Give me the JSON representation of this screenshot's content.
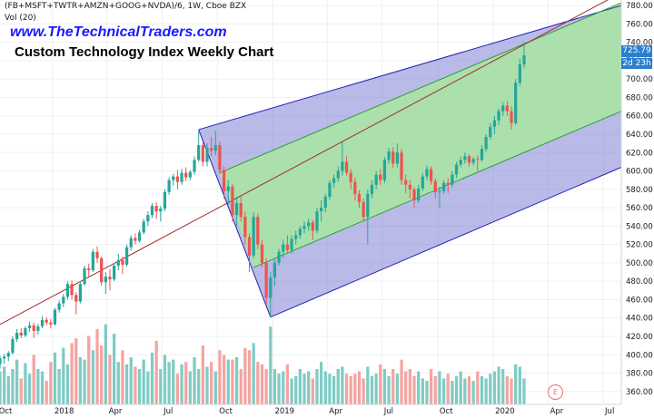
{
  "header": {
    "symbol": "(FB+MSFT+TWTR+AMZN+GOOG+NVDA)/6, 1W, Cboe BZX",
    "volume_label": "Vol (20)",
    "website": "www.TheTechnicalTraders.com",
    "title": "Custom Technology Index Weekly Chart"
  },
  "price_tag": {
    "value": "725.79",
    "countdown": "2d 23h"
  },
  "event_marker": "E",
  "colors": {
    "up": "#26a69a",
    "down": "#ef5350",
    "vol_up": "#80cbc4",
    "vol_down": "#f4a4a1",
    "outer_channel": "#6666cc",
    "inner_channel": "#a8e6a1",
    "median": "#a52a2a",
    "price_tag": "#2a7fce"
  },
  "chart_data": {
    "type": "candlestick",
    "price_axis": {
      "ticks": [
        "360.00",
        "380.00",
        "400.00",
        "420.00",
        "440.00",
        "460.00",
        "480.00",
        "500.00",
        "520.00",
        "540.00",
        "560.00",
        "580.00",
        "600.00",
        "620.00",
        "640.00",
        "660.00",
        "680.00",
        "700.00",
        "720.00",
        "740.00",
        "760.00",
        "780.00"
      ],
      "ylim": [
        346,
        786
      ]
    },
    "time_axis": {
      "ticks": [
        "Oct",
        "2018",
        "Apr",
        "Jul",
        "Oct",
        "2019",
        "Apr",
        "Jul",
        "Oct",
        "2020",
        "Apr",
        "Jul"
      ],
      "start": "2017-10-06",
      "end": "2020-07-31"
    },
    "last_price": 725.79,
    "candles": [
      {
        "date": "2017-10-06",
        "o": 390,
        "h": 399,
        "l": 385,
        "c": 396
      },
      {
        "date": "2017-10-13",
        "o": 396,
        "h": 401,
        "l": 390,
        "c": 398
      },
      {
        "date": "2017-10-20",
        "o": 398,
        "h": 404,
        "l": 393,
        "c": 402
      },
      {
        "date": "2017-10-27",
        "o": 402,
        "h": 420,
        "l": 400,
        "c": 417
      },
      {
        "date": "2017-11-03",
        "o": 417,
        "h": 428,
        "l": 414,
        "c": 424
      },
      {
        "date": "2017-11-10",
        "o": 424,
        "h": 429,
        "l": 418,
        "c": 421
      },
      {
        "date": "2017-11-17",
        "o": 421,
        "h": 431,
        "l": 419,
        "c": 429
      },
      {
        "date": "2017-11-24",
        "o": 429,
        "h": 436,
        "l": 425,
        "c": 432
      },
      {
        "date": "2017-12-01",
        "o": 432,
        "h": 435,
        "l": 418,
        "c": 426
      },
      {
        "date": "2017-12-08",
        "o": 426,
        "h": 434,
        "l": 422,
        "c": 431
      },
      {
        "date": "2017-12-15",
        "o": 431,
        "h": 442,
        "l": 429,
        "c": 438
      },
      {
        "date": "2017-12-22",
        "o": 438,
        "h": 441,
        "l": 432,
        "c": 435
      },
      {
        "date": "2017-12-29",
        "o": 435,
        "h": 439,
        "l": 429,
        "c": 433
      },
      {
        "date": "2018-01-05",
        "o": 433,
        "h": 451,
        "l": 432,
        "c": 449
      },
      {
        "date": "2018-01-12",
        "o": 449,
        "h": 459,
        "l": 446,
        "c": 456
      },
      {
        "date": "2018-01-19",
        "o": 456,
        "h": 466,
        "l": 452,
        "c": 463
      },
      {
        "date": "2018-01-26",
        "o": 463,
        "h": 480,
        "l": 460,
        "c": 477
      },
      {
        "date": "2018-02-02",
        "o": 477,
        "h": 481,
        "l": 460,
        "c": 465
      },
      {
        "date": "2018-02-09",
        "o": 465,
        "h": 468,
        "l": 444,
        "c": 458
      },
      {
        "date": "2018-02-16",
        "o": 458,
        "h": 480,
        "l": 456,
        "c": 477
      },
      {
        "date": "2018-02-23",
        "o": 477,
        "h": 497,
        "l": 475,
        "c": 494
      },
      {
        "date": "2018-03-02",
        "o": 494,
        "h": 499,
        "l": 485,
        "c": 492
      },
      {
        "date": "2018-03-09",
        "o": 492,
        "h": 515,
        "l": 490,
        "c": 512
      },
      {
        "date": "2018-03-16",
        "o": 512,
        "h": 518,
        "l": 500,
        "c": 505
      },
      {
        "date": "2018-03-23",
        "o": 505,
        "h": 507,
        "l": 475,
        "c": 479
      },
      {
        "date": "2018-03-30",
        "o": 479,
        "h": 490,
        "l": 466,
        "c": 485
      },
      {
        "date": "2018-04-06",
        "o": 485,
        "h": 493,
        "l": 470,
        "c": 482
      },
      {
        "date": "2018-04-13",
        "o": 482,
        "h": 500,
        "l": 480,
        "c": 497
      },
      {
        "date": "2018-04-20",
        "o": 497,
        "h": 510,
        "l": 492,
        "c": 503
      },
      {
        "date": "2018-04-27",
        "o": 503,
        "h": 507,
        "l": 488,
        "c": 498
      },
      {
        "date": "2018-05-04",
        "o": 498,
        "h": 520,
        "l": 496,
        "c": 517
      },
      {
        "date": "2018-05-11",
        "o": 517,
        "h": 530,
        "l": 513,
        "c": 527
      },
      {
        "date": "2018-05-18",
        "o": 527,
        "h": 532,
        "l": 520,
        "c": 524
      },
      {
        "date": "2018-05-25",
        "o": 524,
        "h": 536,
        "l": 522,
        "c": 533
      },
      {
        "date": "2018-06-01",
        "o": 533,
        "h": 548,
        "l": 531,
        "c": 545
      },
      {
        "date": "2018-06-08",
        "o": 545,
        "h": 556,
        "l": 540,
        "c": 552
      },
      {
        "date": "2018-06-15",
        "o": 552,
        "h": 565,
        "l": 549,
        "c": 562
      },
      {
        "date": "2018-06-22",
        "o": 562,
        "h": 566,
        "l": 548,
        "c": 556
      },
      {
        "date": "2018-06-29",
        "o": 556,
        "h": 562,
        "l": 545,
        "c": 559
      },
      {
        "date": "2018-07-06",
        "o": 559,
        "h": 580,
        "l": 556,
        "c": 577
      },
      {
        "date": "2018-07-13",
        "o": 577,
        "h": 593,
        "l": 574,
        "c": 590
      },
      {
        "date": "2018-07-20",
        "o": 590,
        "h": 597,
        "l": 584,
        "c": 594
      },
      {
        "date": "2018-07-27",
        "o": 594,
        "h": 601,
        "l": 580,
        "c": 588
      },
      {
        "date": "2018-08-03",
        "o": 588,
        "h": 602,
        "l": 585,
        "c": 598
      },
      {
        "date": "2018-08-10",
        "o": 598,
        "h": 604,
        "l": 589,
        "c": 593
      },
      {
        "date": "2018-08-17",
        "o": 593,
        "h": 601,
        "l": 590,
        "c": 599
      },
      {
        "date": "2018-08-24",
        "o": 599,
        "h": 616,
        "l": 596,
        "c": 612
      },
      {
        "date": "2018-08-31",
        "o": 612,
        "h": 643,
        "l": 610,
        "c": 628
      },
      {
        "date": "2018-09-07",
        "o": 628,
        "h": 632,
        "l": 605,
        "c": 610
      },
      {
        "date": "2018-09-14",
        "o": 610,
        "h": 630,
        "l": 605,
        "c": 625
      },
      {
        "date": "2018-09-21",
        "o": 625,
        "h": 637,
        "l": 616,
        "c": 622
      },
      {
        "date": "2018-09-28",
        "o": 622,
        "h": 644,
        "l": 617,
        "c": 628
      },
      {
        "date": "2018-10-05",
        "o": 628,
        "h": 632,
        "l": 597,
        "c": 601
      },
      {
        "date": "2018-10-12",
        "o": 601,
        "h": 605,
        "l": 570,
        "c": 578
      },
      {
        "date": "2018-10-19",
        "o": 578,
        "h": 590,
        "l": 563,
        "c": 583
      },
      {
        "date": "2018-10-26",
        "o": 583,
        "h": 586,
        "l": 545,
        "c": 552
      },
      {
        "date": "2018-11-02",
        "o": 552,
        "h": 572,
        "l": 540,
        "c": 565
      },
      {
        "date": "2018-11-09",
        "o": 565,
        "h": 572,
        "l": 545,
        "c": 550
      },
      {
        "date": "2018-11-16",
        "o": 550,
        "h": 556,
        "l": 520,
        "c": 528
      },
      {
        "date": "2018-11-23",
        "o": 528,
        "h": 532,
        "l": 490,
        "c": 508
      },
      {
        "date": "2018-11-30",
        "o": 508,
        "h": 555,
        "l": 505,
        "c": 550
      },
      {
        "date": "2018-12-07",
        "o": 550,
        "h": 554,
        "l": 515,
        "c": 520
      },
      {
        "date": "2018-12-14",
        "o": 520,
        "h": 525,
        "l": 495,
        "c": 500
      },
      {
        "date": "2018-12-21",
        "o": 500,
        "h": 505,
        "l": 455,
        "c": 462
      },
      {
        "date": "2018-12-28",
        "o": 462,
        "h": 490,
        "l": 441,
        "c": 484
      },
      {
        "date": "2019-01-04",
        "o": 484,
        "h": 505,
        "l": 475,
        "c": 500
      },
      {
        "date": "2019-01-11",
        "o": 500,
        "h": 515,
        "l": 497,
        "c": 512
      },
      {
        "date": "2019-01-18",
        "o": 512,
        "h": 525,
        "l": 505,
        "c": 520
      },
      {
        "date": "2019-01-25",
        "o": 520,
        "h": 530,
        "l": 510,
        "c": 514
      },
      {
        "date": "2019-02-01",
        "o": 514,
        "h": 530,
        "l": 510,
        "c": 526
      },
      {
        "date": "2019-02-08",
        "o": 526,
        "h": 535,
        "l": 520,
        "c": 530
      },
      {
        "date": "2019-02-15",
        "o": 530,
        "h": 540,
        "l": 526,
        "c": 537
      },
      {
        "date": "2019-02-22",
        "o": 537,
        "h": 545,
        "l": 532,
        "c": 540
      },
      {
        "date": "2019-03-01",
        "o": 540,
        "h": 548,
        "l": 535,
        "c": 544
      },
      {
        "date": "2019-03-08",
        "o": 544,
        "h": 547,
        "l": 525,
        "c": 535
      },
      {
        "date": "2019-03-15",
        "o": 535,
        "h": 560,
        "l": 532,
        "c": 556
      },
      {
        "date": "2019-03-22",
        "o": 556,
        "h": 568,
        "l": 545,
        "c": 560
      },
      {
        "date": "2019-03-29",
        "o": 560,
        "h": 575,
        "l": 555,
        "c": 572
      },
      {
        "date": "2019-04-05",
        "o": 572,
        "h": 590,
        "l": 569,
        "c": 587
      },
      {
        "date": "2019-04-12",
        "o": 587,
        "h": 596,
        "l": 582,
        "c": 592
      },
      {
        "date": "2019-04-19",
        "o": 592,
        "h": 605,
        "l": 588,
        "c": 600
      },
      {
        "date": "2019-04-26",
        "o": 600,
        "h": 632,
        "l": 595,
        "c": 610
      },
      {
        "date": "2019-05-03",
        "o": 610,
        "h": 616,
        "l": 595,
        "c": 598
      },
      {
        "date": "2019-05-10",
        "o": 598,
        "h": 602,
        "l": 580,
        "c": 588
      },
      {
        "date": "2019-05-17",
        "o": 588,
        "h": 593,
        "l": 568,
        "c": 575
      },
      {
        "date": "2019-05-24",
        "o": 575,
        "h": 579,
        "l": 560,
        "c": 566
      },
      {
        "date": "2019-05-31",
        "o": 566,
        "h": 570,
        "l": 545,
        "c": 550
      },
      {
        "date": "2019-06-07",
        "o": 550,
        "h": 580,
        "l": 520,
        "c": 575
      },
      {
        "date": "2019-06-14",
        "o": 575,
        "h": 590,
        "l": 570,
        "c": 585
      },
      {
        "date": "2019-06-21",
        "o": 585,
        "h": 600,
        "l": 580,
        "c": 596
      },
      {
        "date": "2019-06-28",
        "o": 596,
        "h": 602,
        "l": 585,
        "c": 590
      },
      {
        "date": "2019-07-05",
        "o": 590,
        "h": 615,
        "l": 587,
        "c": 612
      },
      {
        "date": "2019-07-12",
        "o": 612,
        "h": 625,
        "l": 608,
        "c": 621
      },
      {
        "date": "2019-07-19",
        "o": 621,
        "h": 626,
        "l": 603,
        "c": 608
      },
      {
        "date": "2019-07-26",
        "o": 608,
        "h": 630,
        "l": 604,
        "c": 620
      },
      {
        "date": "2019-08-02",
        "o": 620,
        "h": 624,
        "l": 585,
        "c": 590
      },
      {
        "date": "2019-08-09",
        "o": 590,
        "h": 596,
        "l": 576,
        "c": 585
      },
      {
        "date": "2019-08-16",
        "o": 585,
        "h": 590,
        "l": 570,
        "c": 580
      },
      {
        "date": "2019-08-23",
        "o": 580,
        "h": 582,
        "l": 560,
        "c": 568
      },
      {
        "date": "2019-08-30",
        "o": 568,
        "h": 585,
        "l": 565,
        "c": 581
      },
      {
        "date": "2019-09-06",
        "o": 581,
        "h": 598,
        "l": 578,
        "c": 594
      },
      {
        "date": "2019-09-13",
        "o": 594,
        "h": 606,
        "l": 590,
        "c": 602
      },
      {
        "date": "2019-09-20",
        "o": 602,
        "h": 605,
        "l": 585,
        "c": 589
      },
      {
        "date": "2019-09-27",
        "o": 589,
        "h": 592,
        "l": 570,
        "c": 577
      },
      {
        "date": "2019-10-04",
        "o": 577,
        "h": 583,
        "l": 560,
        "c": 578
      },
      {
        "date": "2019-10-11",
        "o": 578,
        "h": 590,
        "l": 575,
        "c": 587
      },
      {
        "date": "2019-10-18",
        "o": 587,
        "h": 592,
        "l": 576,
        "c": 585
      },
      {
        "date": "2019-10-25",
        "o": 585,
        "h": 600,
        "l": 582,
        "c": 596
      },
      {
        "date": "2019-11-01",
        "o": 596,
        "h": 610,
        "l": 592,
        "c": 607
      },
      {
        "date": "2019-11-08",
        "o": 607,
        "h": 616,
        "l": 604,
        "c": 612
      },
      {
        "date": "2019-11-15",
        "o": 612,
        "h": 620,
        "l": 608,
        "c": 616
      },
      {
        "date": "2019-11-22",
        "o": 616,
        "h": 618,
        "l": 605,
        "c": 609
      },
      {
        "date": "2019-11-29",
        "o": 609,
        "h": 615,
        "l": 606,
        "c": 613
      },
      {
        "date": "2019-12-06",
        "o": 613,
        "h": 617,
        "l": 600,
        "c": 612
      },
      {
        "date": "2019-12-13",
        "o": 612,
        "h": 628,
        "l": 610,
        "c": 624
      },
      {
        "date": "2019-12-20",
        "o": 624,
        "h": 640,
        "l": 621,
        "c": 637
      },
      {
        "date": "2019-12-27",
        "o": 637,
        "h": 652,
        "l": 634,
        "c": 648
      },
      {
        "date": "2020-01-03",
        "o": 648,
        "h": 660,
        "l": 640,
        "c": 655
      },
      {
        "date": "2020-01-10",
        "o": 655,
        "h": 668,
        "l": 650,
        "c": 665
      },
      {
        "date": "2020-01-17",
        "o": 665,
        "h": 675,
        "l": 660,
        "c": 671
      },
      {
        "date": "2020-01-24",
        "o": 671,
        "h": 676,
        "l": 660,
        "c": 665
      },
      {
        "date": "2020-01-31",
        "o": 665,
        "h": 670,
        "l": 645,
        "c": 652
      },
      {
        "date": "2020-02-07",
        "o": 652,
        "h": 700,
        "l": 650,
        "c": 696
      },
      {
        "date": "2020-02-14",
        "o": 696,
        "h": 722,
        "l": 692,
        "c": 716
      },
      {
        "date": "2020-02-21",
        "o": 716,
        "h": 740,
        "l": 712,
        "c": 725.79
      }
    ],
    "volume": [
      28,
      32,
      24,
      30,
      38,
      22,
      35,
      26,
      42,
      30,
      28,
      20,
      36,
      44,
      30,
      48,
      34,
      52,
      56,
      40,
      38,
      58,
      46,
      64,
      50,
      68,
      42,
      60,
      36,
      46,
      34,
      40,
      32,
      30,
      38,
      28,
      44,
      54,
      30,
      42,
      36,
      38,
      26,
      34,
      36,
      28,
      40,
      30,
      50,
      32,
      36,
      28,
      46,
      42,
      38,
      38,
      40,
      30,
      48,
      46,
      52,
      36,
      34,
      30,
      66,
      30,
      26,
      28,
      34,
      22,
      24,
      30,
      26,
      28,
      22,
      30,
      36,
      28,
      26,
      24,
      30,
      32,
      26,
      24,
      26,
      28,
      22,
      32,
      24,
      26,
      34,
      30,
      24,
      30,
      26,
      38,
      28,
      30,
      24,
      28,
      22,
      20,
      30,
      24,
      28,
      22,
      26,
      20,
      24,
      28,
      22,
      24,
      20,
      28,
      24,
      22,
      26,
      28,
      32,
      30,
      24,
      22,
      34,
      32,
      22
    ],
    "indicators": {
      "median_line": {
        "p1": {
          "date": "2017-10-06",
          "price": 433
        },
        "p2": {
          "date": "2020-07-31",
          "price": 794
        }
      },
      "outer_channel": {
        "anchor": {
          "date": "2018-08-31",
          "price": 645
        },
        "end": {
          "date": "2020-07-31",
          "price": 780
        },
        "low_anchor": {
          "date": "2018-12-28",
          "price": 441
        },
        "low_end": {
          "date": "2020-07-31",
          "price": 604
        }
      },
      "inner_channel": {
        "anchor": {
          "date": "2018-10-05",
          "price": 598
        },
        "end": {
          "date": "2020-07-31",
          "price": 783
        },
        "low_anchor": {
          "date": "2018-11-30",
          "price": 495
        },
        "low_end": {
          "date": "2020-07-31",
          "price": 665
        }
      }
    }
  }
}
